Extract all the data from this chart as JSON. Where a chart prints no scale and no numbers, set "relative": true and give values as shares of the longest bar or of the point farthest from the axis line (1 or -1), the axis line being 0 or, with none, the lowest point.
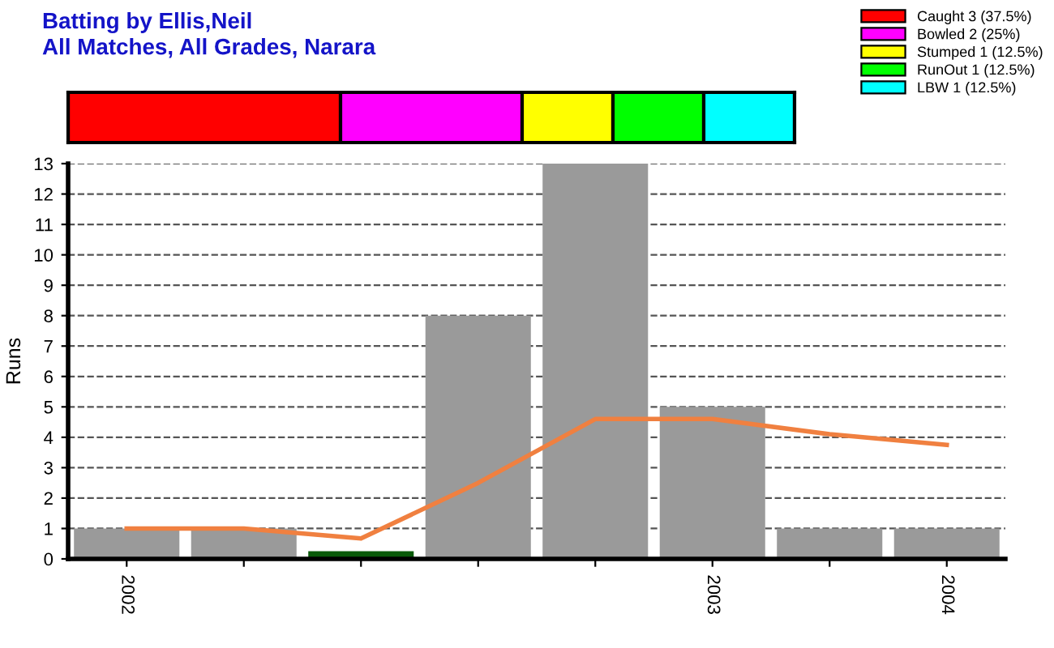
{
  "chart_data": [
    {
      "type": "bar",
      "title": "Batting by Ellis,Neil",
      "subtitle": "All Matches, All Grades, Narara",
      "orientation": "horizontal",
      "stacked": true,
      "relative": true,
      "categories": [
        null
      ],
      "legend": "top right",
      "series": [
        {
          "name": "Caught 3 (37.5%)",
          "color": "#ff0000",
          "values": [
            0.375
          ]
        },
        {
          "name": "Bowled 2 (25%)",
          "color": "#ff00ff",
          "values": [
            0.25
          ]
        },
        {
          "name": "Stumped 1 (12.5%)",
          "color": "#ffff00",
          "values": [
            0.125
          ]
        },
        {
          "name": "RunOut 1 (12.5%)",
          "color": "#00ff00",
          "values": [
            0.125
          ]
        },
        {
          "name": "LBW 1 (12.5%)",
          "color": "#00ffff",
          "values": [
            0.125
          ]
        }
      ]
    },
    {
      "type": "bar",
      "ylabel": "Runs",
      "categories": [
        "2002",
        null,
        null,
        null,
        null,
        "2003",
        null,
        "2004"
      ],
      "ylim": [
        0,
        13
      ],
      "yticks": [
        0,
        1,
        2,
        3,
        4,
        5,
        6,
        7,
        8,
        9,
        10,
        11,
        12,
        13
      ],
      "grid": "y",
      "series": [
        {
          "type": "bar",
          "colors": [
            "#9a9a9a",
            "#9a9a9a",
            "#0a5a0a",
            "#9a9a9a",
            "#9a9a9a",
            "#9a9a9a",
            "#9a9a9a",
            "#9a9a9a"
          ],
          "values": [
            1,
            1,
            0.25,
            8,
            13,
            5,
            1,
            1
          ]
        },
        {
          "type": "line",
          "color": "#f08040",
          "values": [
            1,
            1,
            0.67,
            2.5,
            4.6,
            4.6,
            4.1,
            3.75
          ]
        }
      ]
    }
  ]
}
